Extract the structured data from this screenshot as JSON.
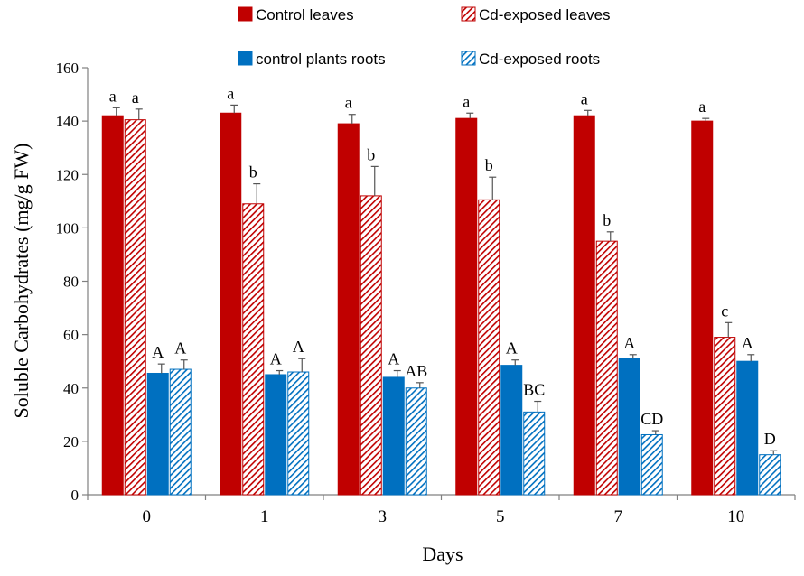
{
  "chart_data": {
    "type": "bar",
    "title": "",
    "xlabel": "Days",
    "ylabel": "Soluble Carbohydrates (mg/g FW)",
    "ylim": [
      0,
      160
    ],
    "yticks": [
      0,
      20,
      40,
      60,
      80,
      100,
      120,
      140,
      160
    ],
    "categories": [
      "0",
      "1",
      "3",
      "5",
      "7",
      "10"
    ],
    "legend_position": "top",
    "series": [
      {
        "name": "Control leaves",
        "color": "#c00000",
        "pattern": "solid",
        "values": [
          142,
          143,
          139,
          141,
          142,
          140
        ],
        "errors": [
          3,
          3,
          3.5,
          2,
          2,
          1
        ],
        "labels": [
          "a",
          "a",
          "a",
          "a",
          "a",
          "a"
        ]
      },
      {
        "name": "Cd-exposed leaves",
        "color": "#c00000",
        "pattern": "hatch",
        "values": [
          140.5,
          109,
          112,
          110.5,
          95,
          59
        ],
        "errors": [
          4,
          7.5,
          11,
          8.5,
          3.5,
          5.5
        ],
        "labels": [
          "a",
          "b",
          "b",
          "b",
          "b",
          "c"
        ]
      },
      {
        "name": "control plants roots",
        "color": "#0070c0",
        "pattern": "solid",
        "values": [
          45.5,
          45,
          44,
          48.5,
          51,
          50
        ],
        "errors": [
          3.5,
          1.5,
          2.5,
          2,
          1.5,
          2.5
        ],
        "labels": [
          "A",
          "A",
          "A",
          "A",
          "A",
          "A"
        ]
      },
      {
        "name": "Cd-exposed roots",
        "color": "#0070c0",
        "pattern": "hatch",
        "values": [
          47,
          46,
          40,
          31,
          22.5,
          15
        ],
        "errors": [
          3.5,
          5,
          2,
          4,
          1.5,
          1.5
        ],
        "labels": [
          "A",
          "A",
          "AB",
          "BC",
          "CD",
          "D"
        ]
      }
    ]
  }
}
